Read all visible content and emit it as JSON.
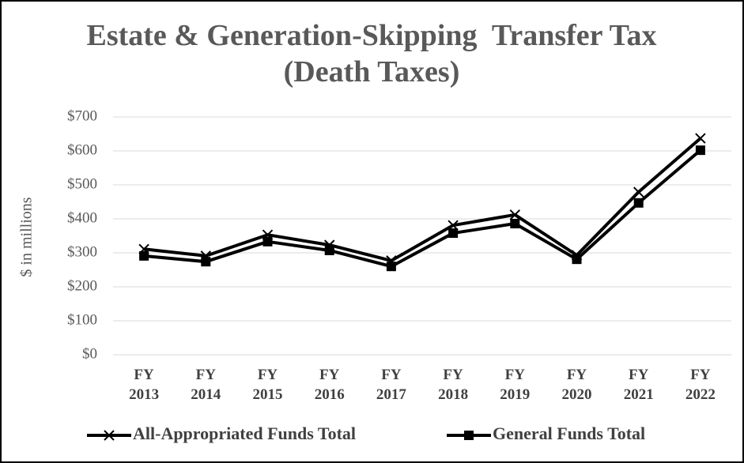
{
  "chart_data": {
    "type": "line",
    "title": "Estate & Generation-Skipping  Transfer Tax (Death Taxes)",
    "y_label": "$ in millions",
    "categories": [
      "FY 2013",
      "FY 2014",
      "FY 2015",
      "FY 2016",
      "FY 2017",
      "FY 2018",
      "FY 2019",
      "FY 2020",
      "FY 2021",
      "FY 2022"
    ],
    "series": [
      {
        "name": "All-Appropriated Funds Total",
        "color": "#000000",
        "marker": "x",
        "values": [
          311,
          291,
          353,
          323,
          277,
          381,
          412,
          293,
          479,
          637
        ]
      },
      {
        "name": "General Funds Total",
        "color": "#000000",
        "marker": "square",
        "values": [
          291,
          274,
          333,
          307,
          260,
          358,
          386,
          281,
          447,
          602
        ]
      }
    ],
    "ylim": [
      0,
      700
    ],
    "yticks": [
      {
        "value": 0,
        "label": "$0"
      },
      {
        "value": 100,
        "label": "$100"
      },
      {
        "value": 200,
        "label": "$200"
      },
      {
        "value": 300,
        "label": "$300"
      },
      {
        "value": 400,
        "label": "$400"
      },
      {
        "value": 500,
        "label": "$500"
      },
      {
        "value": 600,
        "label": "$600"
      },
      {
        "value": 700,
        "label": "$700"
      }
    ],
    "grid": true,
    "legend": "bottom"
  }
}
